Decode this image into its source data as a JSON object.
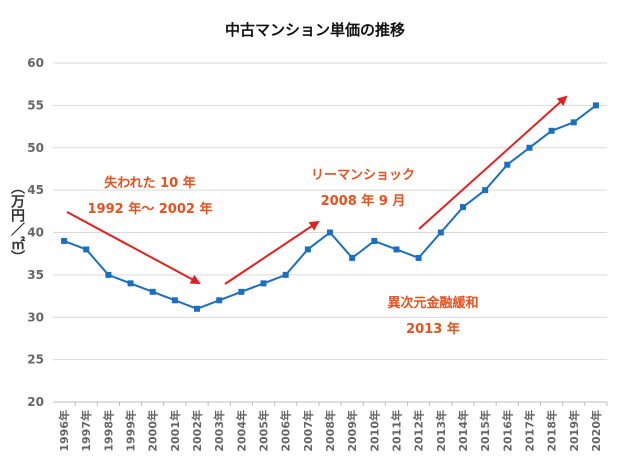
{
  "chart_data": {
    "type": "line",
    "title": "中古マンション単価の推移",
    "ylabel": "（万円／㎡）",
    "ylim": [
      20,
      60
    ],
    "yticks": [
      20,
      25,
      30,
      35,
      40,
      45,
      50,
      55,
      60
    ],
    "grid": true,
    "categories": [
      "1996年",
      "1997年",
      "1998年",
      "1999年",
      "2000年",
      "2001年",
      "2002年",
      "2003年",
      "2004年",
      "2005年",
      "2006年",
      "2007年",
      "2008年",
      "2009年",
      "2010年",
      "2011年",
      "2012年",
      "2013年",
      "2014年",
      "2015年",
      "2016年",
      "2017年",
      "2018年",
      "2019年",
      "2020年"
    ],
    "series": [
      {
        "values": [
          39,
          38,
          35,
          34,
          33,
          32,
          31,
          32,
          33,
          34,
          35,
          38,
          40,
          37,
          39,
          38,
          37,
          40,
          43,
          45,
          48,
          50,
          52,
          53,
          55
        ],
        "color": "#1a6fbf"
      }
    ],
    "annotations": [
      {
        "lines": [
          "失われた 10 年",
          "1992 年～ 2002 年"
        ],
        "color": "#e8501e"
      },
      {
        "lines": [
          "リーマンショック",
          "2008 年 9 月"
        ],
        "color": "#e8501e"
      },
      {
        "lines": [
          "異次元金融緩和",
          "2013 年"
        ],
        "color": "#e8501e"
      }
    ],
    "arrow_color": "#e32020"
  }
}
